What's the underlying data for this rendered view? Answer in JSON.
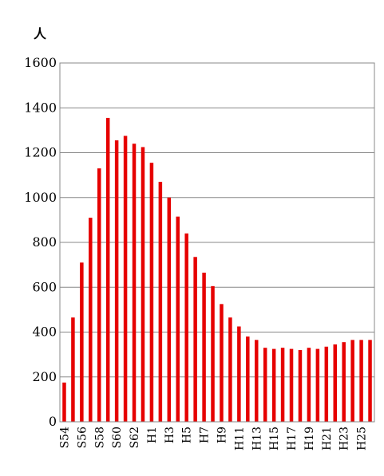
{
  "chart_data": {
    "type": "bar",
    "ylabel": "人",
    "ylim": [
      0,
      1600
    ],
    "yticks": [
      0,
      200,
      400,
      600,
      800,
      1000,
      1200,
      1400,
      1600
    ],
    "grid": true,
    "bar_color": "#e60000",
    "categories": [
      "S54",
      "S55",
      "S56",
      "S57",
      "S58",
      "S59",
      "S60",
      "S61",
      "S62",
      "S63",
      "H1",
      "H2",
      "H3",
      "H4",
      "H5",
      "H6",
      "H7",
      "H8",
      "H9",
      "H10",
      "H11",
      "H12",
      "H13",
      "H14",
      "H15",
      "H16",
      "H17",
      "H18",
      "H19",
      "H20",
      "H21",
      "H22",
      "H23",
      "H24",
      "H25",
      "H26"
    ],
    "shown_category_labels": [
      "S54",
      "S56",
      "S58",
      "S60",
      "S62",
      "H1",
      "H3",
      "H5",
      "H7",
      "H9",
      "H11",
      "H13",
      "H15",
      "H17",
      "H19",
      "H21",
      "H23",
      "H25"
    ],
    "values": [
      175,
      465,
      710,
      910,
      1130,
      1355,
      1255,
      1275,
      1240,
      1225,
      1155,
      1070,
      1000,
      915,
      840,
      735,
      665,
      605,
      525,
      465,
      425,
      380,
      365,
      330,
      325,
      330,
      325,
      320,
      330,
      325,
      335,
      345,
      355,
      365,
      365,
      365
    ]
  }
}
